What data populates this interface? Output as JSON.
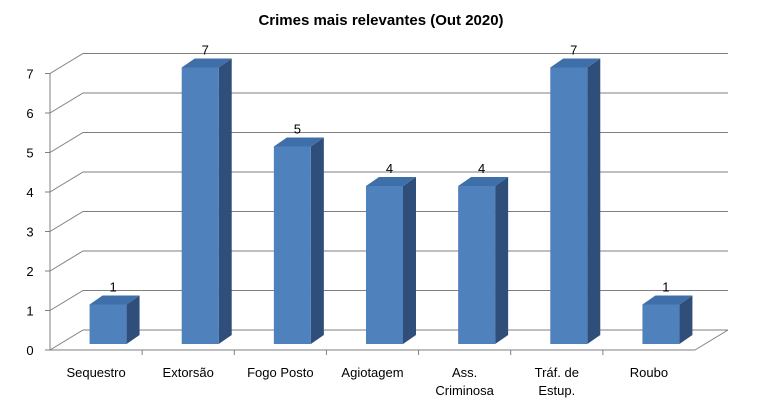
{
  "chart_data": {
    "type": "bar",
    "title": "Crimes mais relevantes (Out 2020)",
    "categories": [
      [
        "Sequestro"
      ],
      [
        "Extorsão"
      ],
      [
        "Fogo Posto"
      ],
      [
        "Agiotagem"
      ],
      [
        "Ass.",
        "Criminosa"
      ],
      [
        "Tráf. de",
        "Estup."
      ],
      [
        "Roubo"
      ]
    ],
    "values": [
      1,
      7,
      5,
      4,
      4,
      7,
      1
    ],
    "data_labels": [
      "1",
      "7",
      "5",
      "4",
      "4",
      "7",
      "1"
    ],
    "y_ticks": [
      "0",
      "1",
      "2",
      "3",
      "4",
      "5",
      "6",
      "7"
    ],
    "ylim": [
      0,
      7
    ],
    "grid": true,
    "legend": "none",
    "style": "3d-column",
    "colors": {
      "bar_front": "#4f81bd",
      "bar_top": "#3f6fa8",
      "bar_side": "#2f4f7a",
      "grid": "#7f7f7f"
    }
  }
}
